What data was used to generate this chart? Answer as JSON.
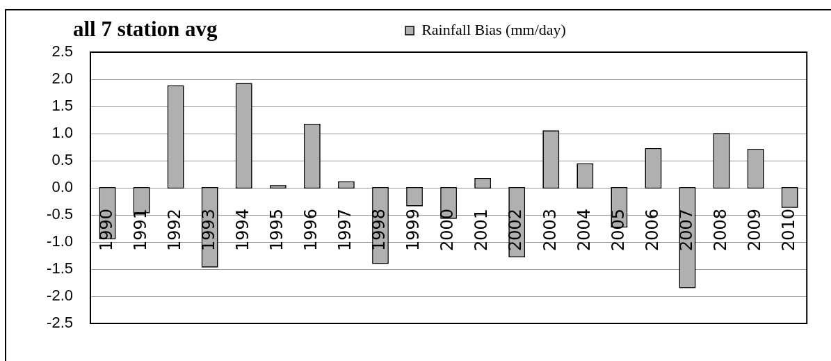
{
  "chart_data": {
    "type": "bar",
    "title": "all 7 station avg",
    "categories": [
      "1990",
      "1991",
      "1992",
      "1993",
      "1994",
      "1995",
      "1996",
      "1997",
      "1998",
      "1999",
      "2000",
      "2001",
      "2002",
      "2003",
      "2004",
      "2005",
      "2006",
      "2007",
      "2008",
      "2009",
      "2010"
    ],
    "series": [
      {
        "name": "Rainfall Bias (mm/day)",
        "color": "#b0b0b0",
        "values": [
          -0.93,
          -0.45,
          1.87,
          -1.45,
          1.91,
          0.03,
          1.16,
          0.1,
          -1.38,
          -0.32,
          -0.55,
          0.16,
          -1.26,
          1.04,
          0.43,
          -0.71,
          0.71,
          -1.83,
          0.99,
          0.7,
          -0.35
        ]
      }
    ],
    "ylim": [
      -2.5,
      2.5
    ],
    "yticks": [
      2.5,
      {
        "value": 2,
        "label": "2.0"
      },
      1.5,
      {
        "value": 1,
        "label": "1.0"
      },
      0.5,
      {
        "value": 0,
        "label": "0.0"
      },
      -0.5,
      {
        "value": -1,
        "label": "-1.0"
      },
      -1.5,
      {
        "value": -2,
        "label": "-2.0"
      },
      -2.5
    ],
    "grid": "y",
    "legend": "top"
  }
}
